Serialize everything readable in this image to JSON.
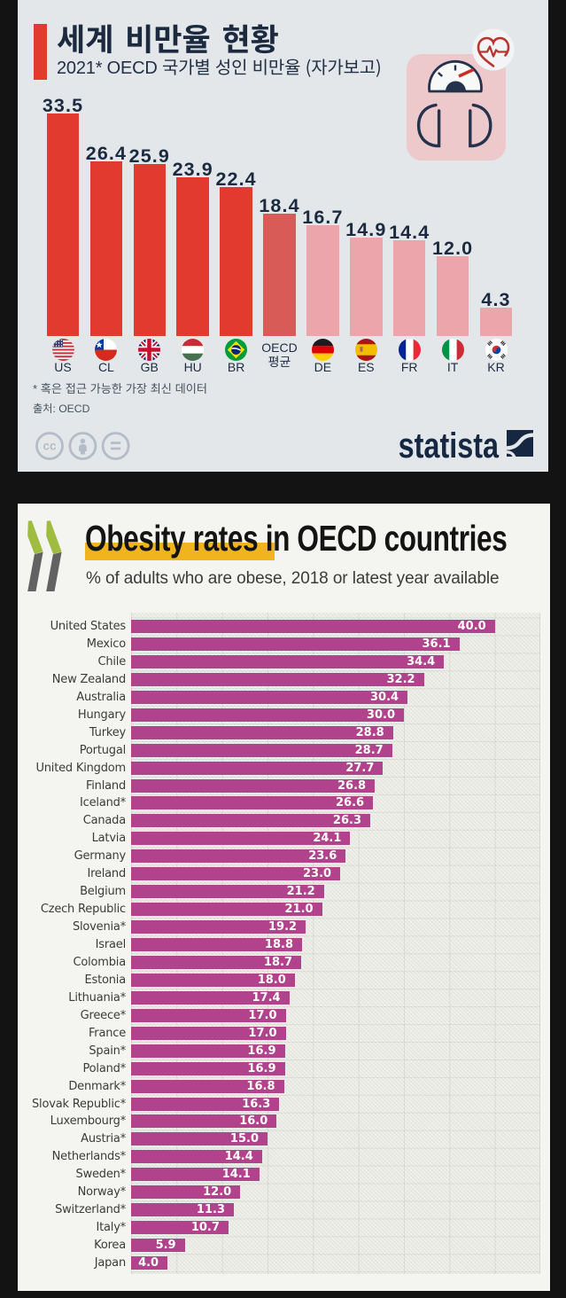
{
  "page": {
    "background": "#131313"
  },
  "statista_infographic": {
    "title": "세계 비만율 현황",
    "subtitle": "2021* OECD 국가별 성인 비만율 (자가보고)",
    "footnote": "* 혹은 접근 가능한 가장 최신 데이터",
    "source": "출처: OECD",
    "brand": "statista",
    "icon": "bathroom-scale-with-heart",
    "colors": {
      "background": "#e3e7ea",
      "bar_red": "#e23a2f",
      "bar_oecd_average": "#d95b57",
      "bar_pink": "#eca6ab",
      "text_navy": "#1c2a40"
    }
  },
  "oecd_chart": {
    "title_highlighted": "Obesity rates",
    "title_rest": " in OECD countries",
    "subtitle": "% of adults who are obese, 2018 or latest year available",
    "logo": "oecd-double-chevron",
    "colors": {
      "background": "#f4f4f0",
      "bar": "#b1438d",
      "highlight": "#efb41e",
      "chevron_green": "#9fbc40",
      "chevron_gray": "#626262"
    }
  },
  "chart_data": [
    {
      "type": "bar",
      "title": "세계 비만율 현황",
      "subtitle": "2021* OECD 국가별 성인 비만율 (자가보고)",
      "categories": [
        "US",
        "CL",
        "GB",
        "HU",
        "BR",
        "OECD 평균",
        "DE",
        "ES",
        "FR",
        "IT",
        "KR"
      ],
      "values": [
        33.5,
        26.4,
        25.9,
        23.9,
        22.4,
        18.4,
        16.7,
        14.9,
        14.4,
        12.0,
        4.3
      ],
      "bar_colors": [
        "#e23a2f",
        "#e23a2f",
        "#e23a2f",
        "#e23a2f",
        "#e23a2f",
        "#d95b57",
        "#eca6ab",
        "#eca6ab",
        "#eca6ab",
        "#eca6ab",
        "#eca6ab"
      ],
      "flags": [
        "us",
        "cl",
        "gb",
        "hu",
        "br",
        null,
        "de",
        "es",
        "fr",
        "it",
        "kr"
      ],
      "xlabel": "",
      "ylabel": "",
      "ylim": [
        0,
        35
      ],
      "grid": false,
      "legend": false,
      "value_labels": [
        "33.5",
        "26.4",
        "25.9",
        "23.9",
        "22.4",
        "18.4",
        "16.7",
        "14.9",
        "14.4",
        "12.0",
        "4.3"
      ]
    },
    {
      "type": "bar",
      "orientation": "horizontal",
      "title": "Obesity rates in OECD countries",
      "subtitle": "% of adults who are obese, 2018 or latest year available",
      "categories": [
        "United States",
        "Mexico",
        "Chile",
        "New Zealand",
        "Australia",
        "Hungary",
        "Turkey",
        "Portugal",
        "United Kingdom",
        "Finland",
        "Iceland*",
        "Canada",
        "Latvia",
        "Germany",
        "Ireland",
        "Belgium",
        "Czech Republic",
        "Slovenia*",
        "Israel",
        "Colombia",
        "Estonia",
        "Lithuania*",
        "Greece*",
        "France",
        "Spain*",
        "Poland*",
        "Denmark*",
        "Slovak Republic*",
        "Luxembourg*",
        "Austria*",
        "Netherlands*",
        "Sweden*",
        "Norway*",
        "Switzerland*",
        "Italy*",
        "Korea",
        "Japan"
      ],
      "values": [
        40.0,
        36.1,
        34.4,
        32.2,
        30.4,
        30.0,
        28.8,
        28.7,
        27.7,
        26.8,
        26.6,
        26.3,
        24.1,
        23.6,
        23.0,
        21.2,
        21.0,
        19.2,
        18.8,
        18.7,
        18.0,
        17.4,
        17.0,
        17.0,
        16.9,
        16.9,
        16.8,
        16.3,
        16.0,
        15.0,
        14.4,
        14.1,
        12.0,
        11.3,
        10.7,
        5.9,
        4.0
      ],
      "value_labels": [
        "40.0",
        "36.1",
        "34.4",
        "32.2",
        "30.4",
        "30.0",
        "28.8",
        "28.7",
        "27.7",
        "26.8",
        "26.6",
        "26.3",
        "24.1",
        "23.6",
        "23.0",
        "21.2",
        "21.0",
        "19.2",
        "18.8",
        "18.7",
        "18.0",
        "17.4",
        "17.0",
        "17.0",
        "16.9",
        "16.9",
        "16.8",
        "16.3",
        "16.0",
        "15.0",
        "14.4",
        "14.1",
        "12.0",
        "11.3",
        "10.7",
        "5.9",
        "4.0"
      ],
      "xlim": [
        0,
        45
      ],
      "grid": true,
      "gridline_interval": 5,
      "legend": false
    }
  ]
}
